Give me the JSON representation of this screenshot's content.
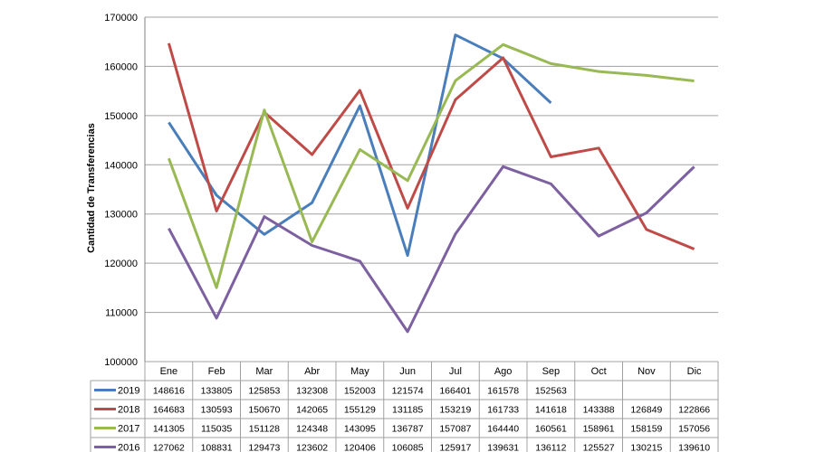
{
  "chart_data": {
    "type": "line",
    "title": "",
    "xlabel": "",
    "ylabel": "Cantidad de Transferencias",
    "ylim": [
      100000,
      170000
    ],
    "yticks": [
      "100000",
      "110000",
      "120000",
      "130000",
      "140000",
      "150000",
      "160000",
      "170000"
    ],
    "categories": [
      "Ene",
      "Feb",
      "Mar",
      "Abr",
      "May",
      "Jun",
      "Jul",
      "Ago",
      "Sep",
      "Oct",
      "Nov",
      "Dic"
    ],
    "grid": true,
    "legend": "data-table-left",
    "series": [
      {
        "name": "2019",
        "color": "#4a7ebb",
        "values": [
          148616,
          133805,
          125853,
          132308,
          152003,
          121574,
          166401,
          161578,
          152563,
          null,
          null,
          null
        ]
      },
      {
        "name": "2018",
        "color": "#be4b48",
        "values": [
          164683,
          130593,
          150670,
          142065,
          155129,
          131185,
          153219,
          161733,
          141618,
          143388,
          126849,
          122866
        ]
      },
      {
        "name": "2017",
        "color": "#98b954",
        "values": [
          141305,
          115035,
          151128,
          124348,
          143095,
          136787,
          157087,
          164440,
          160561,
          158961,
          158159,
          157056
        ]
      },
      {
        "name": "2016",
        "color": "#7d60a0",
        "values": [
          127062,
          108831,
          129473,
          123602,
          120406,
          106085,
          125917,
          139631,
          136112,
          125527,
          130215,
          139610
        ]
      }
    ]
  }
}
